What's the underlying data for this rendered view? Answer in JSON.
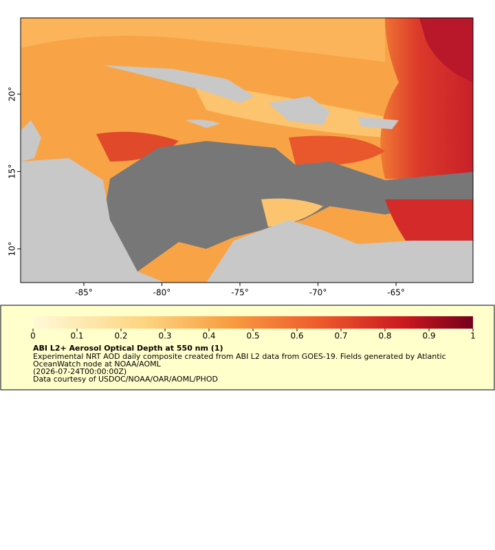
{
  "map": {
    "xlim": [
      -89.05,
      -60.07
    ],
    "ylim": [
      7.82,
      24.93
    ],
    "xticks": [
      {
        "value": -85,
        "label": "-85°"
      },
      {
        "value": -80,
        "label": "-80°"
      },
      {
        "value": -75,
        "label": "-75°"
      },
      {
        "value": -70,
        "label": "-70°"
      },
      {
        "value": -65,
        "label": "-65°"
      }
    ],
    "yticks": [
      {
        "value": 20,
        "label": "20°"
      },
      {
        "value": 15,
        "label": "15°"
      },
      {
        "value": 10,
        "label": "10°"
      }
    ]
  },
  "legend": {
    "range": [
      0,
      1
    ],
    "ticks": [
      0,
      0.1,
      0.2,
      0.3,
      0.4,
      0.5,
      0.6,
      0.7,
      0.8,
      0.9,
      1
    ],
    "title": "ABI L2+ Aerosol Optical Depth at 550 nm (1)",
    "lines": [
      "Experimental NRT AOD daily composite created from ABI L2 data from GOES-19. Fields generated by Atlantic",
      "OceanWatch node at NOAA/AOML",
      "(2026-07-24T00:00:00Z)",
      "Data courtesy of USDOC/NOAA/OAR/AOML/PHOD"
    ]
  }
}
